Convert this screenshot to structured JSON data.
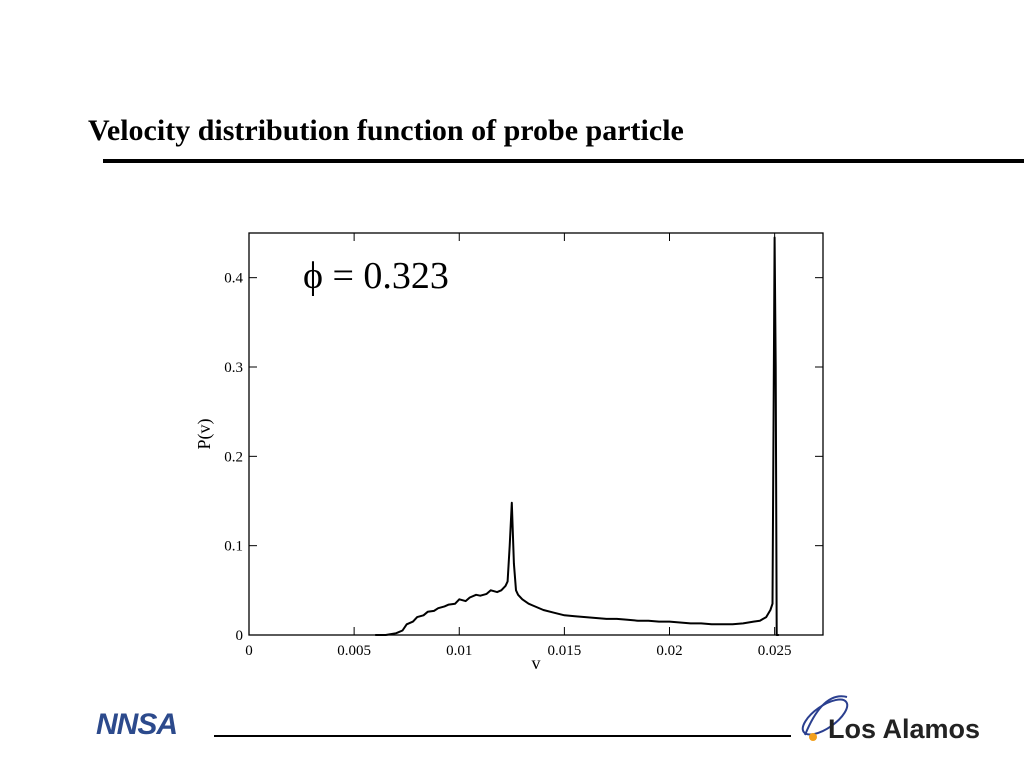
{
  "slide": {
    "title": "Velocity distribution function of probe particle"
  },
  "footer": {
    "left_logo_text": "NNSA",
    "right_logo_text": "Los Alamos"
  },
  "colors": {
    "text": "#000000",
    "nnsa_blue": "#2c4a8c",
    "la_blue": "#2a3f8f",
    "la_orange": "#f2a01e"
  },
  "chart_data": {
    "type": "line",
    "title": "",
    "annotation": "ϕ = 0.323",
    "xlabel": "v",
    "ylabel": "P(v)",
    "xlim": [
      0,
      0.0273
    ],
    "ylim": [
      0,
      0.45
    ],
    "xticks": [
      0,
      0.005,
      0.01,
      0.015,
      0.02,
      0.025
    ],
    "xtick_labels": [
      "0",
      "0.005",
      "0.01",
      "0.015",
      "0.02",
      "0.025"
    ],
    "yticks": [
      0,
      0.1,
      0.2,
      0.3,
      0.4
    ],
    "ytick_labels": [
      "0",
      "0.1",
      "0.2",
      "0.3",
      "0.4"
    ],
    "grid": false,
    "series": [
      {
        "x": [
          0.006,
          0.0065,
          0.007,
          0.0073,
          0.0075,
          0.0078,
          0.008,
          0.0083,
          0.0085,
          0.0088,
          0.009,
          0.0093,
          0.0095,
          0.0098,
          0.01,
          0.0103,
          0.0105,
          0.0108,
          0.011,
          0.0113,
          0.0115,
          0.0118,
          0.012,
          0.0122,
          0.0123,
          0.0124,
          0.0125,
          0.0126,
          0.0127,
          0.0128,
          0.013,
          0.0133,
          0.0135,
          0.014,
          0.0145,
          0.015,
          0.0155,
          0.016,
          0.0165,
          0.017,
          0.0175,
          0.018,
          0.0185,
          0.019,
          0.0195,
          0.02,
          0.0205,
          0.021,
          0.0215,
          0.022,
          0.0225,
          0.023,
          0.0235,
          0.024,
          0.0243,
          0.0246,
          0.0248,
          0.0249,
          0.025,
          0.02505,
          0.0251,
          0.0252
        ],
        "y": [
          0.0,
          0.0,
          0.002,
          0.005,
          0.012,
          0.015,
          0.02,
          0.022,
          0.026,
          0.027,
          0.03,
          0.032,
          0.034,
          0.035,
          0.04,
          0.038,
          0.042,
          0.045,
          0.044,
          0.046,
          0.05,
          0.048,
          0.05,
          0.055,
          0.06,
          0.1,
          0.148,
          0.08,
          0.05,
          0.045,
          0.04,
          0.035,
          0.033,
          0.028,
          0.025,
          0.022,
          0.021,
          0.02,
          0.019,
          0.018,
          0.018,
          0.017,
          0.016,
          0.016,
          0.015,
          0.015,
          0.014,
          0.013,
          0.013,
          0.012,
          0.012,
          0.012,
          0.013,
          0.015,
          0.016,
          0.02,
          0.028,
          0.035,
          0.445,
          0.3,
          0.0,
          0.0
        ]
      }
    ]
  }
}
